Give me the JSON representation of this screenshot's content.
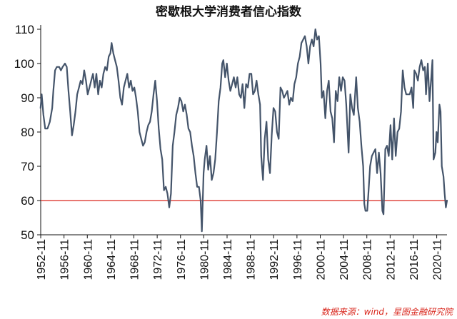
{
  "chart_data": {
    "type": "line",
    "title": "密歇根大学消费者信心指数",
    "xlabel": "",
    "ylabel": "",
    "ylim": [
      50,
      110
    ],
    "yticks": [
      50,
      60,
      70,
      80,
      90,
      100,
      110
    ],
    "xlim": [
      1952.83,
      2022.6
    ],
    "xtick_labels": [
      "1952-11",
      "1956-11",
      "1960-11",
      "1964-11",
      "1968-11",
      "1972-11",
      "1976-11",
      "1980-11",
      "1984-11",
      "1988-11",
      "1992-11",
      "1996-11",
      "2000-11",
      "2004-11",
      "2008-11",
      "2012-11",
      "2016-11",
      "2020-11"
    ],
    "grid": false,
    "legend": "none",
    "reference_line": {
      "y": 60,
      "color": "#d9261c"
    },
    "series": [
      {
        "color": "#44546a",
        "points": [
          [
            1952.8,
            87
          ],
          [
            1953.0,
            91
          ],
          [
            1953.3,
            85
          ],
          [
            1953.6,
            81
          ],
          [
            1954.0,
            81
          ],
          [
            1954.4,
            83
          ],
          [
            1954.8,
            87
          ],
          [
            1955.0,
            92
          ],
          [
            1955.3,
            98
          ],
          [
            1955.6,
            99
          ],
          [
            1956.0,
            99
          ],
          [
            1956.3,
            98
          ],
          [
            1956.6,
            99
          ],
          [
            1957.0,
            100
          ],
          [
            1957.3,
            99
          ],
          [
            1957.6,
            92
          ],
          [
            1957.9,
            86
          ],
          [
            1958.2,
            79
          ],
          [
            1958.5,
            82
          ],
          [
            1958.8,
            86
          ],
          [
            1959.1,
            91
          ],
          [
            1959.4,
            93
          ],
          [
            1959.7,
            95
          ],
          [
            1960.0,
            94
          ],
          [
            1960.3,
            98
          ],
          [
            1960.6,
            95
          ],
          [
            1960.9,
            91
          ],
          [
            1961.2,
            93
          ],
          [
            1961.5,
            95
          ],
          [
            1961.8,
            97
          ],
          [
            1962.1,
            93
          ],
          [
            1962.4,
            97
          ],
          [
            1962.7,
            91
          ],
          [
            1963.0,
            95
          ],
          [
            1963.3,
            93
          ],
          [
            1963.6,
            97
          ],
          [
            1963.9,
            99
          ],
          [
            1964.2,
            98
          ],
          [
            1964.5,
            102
          ],
          [
            1964.8,
            103
          ],
          [
            1965.0,
            106
          ],
          [
            1965.3,
            103
          ],
          [
            1965.6,
            101
          ],
          [
            1965.9,
            99
          ],
          [
            1966.2,
            95
          ],
          [
            1966.5,
            90
          ],
          [
            1966.8,
            88
          ],
          [
            1967.1,
            93
          ],
          [
            1967.4,
            95
          ],
          [
            1967.7,
            97
          ],
          [
            1968.0,
            93
          ],
          [
            1968.3,
            95
          ],
          [
            1968.6,
            92
          ],
          [
            1968.9,
            93
          ],
          [
            1969.2,
            90
          ],
          [
            1969.5,
            86
          ],
          [
            1969.8,
            80
          ],
          [
            1970.1,
            78
          ],
          [
            1970.4,
            76
          ],
          [
            1970.7,
            77
          ],
          [
            1971.0,
            80
          ],
          [
            1971.3,
            82
          ],
          [
            1971.6,
            83
          ],
          [
            1971.9,
            86
          ],
          [
            1972.2,
            91
          ],
          [
            1972.5,
            95
          ],
          [
            1972.8,
            89
          ],
          [
            1973.1,
            81
          ],
          [
            1973.4,
            75
          ],
          [
            1973.7,
            72
          ],
          [
            1974.0,
            63
          ],
          [
            1974.3,
            64
          ],
          [
            1974.6,
            62
          ],
          [
            1974.9,
            58
          ],
          [
            1975.2,
            62
          ],
          [
            1975.5,
            76
          ],
          [
            1975.8,
            80
          ],
          [
            1976.1,
            85
          ],
          [
            1976.4,
            87
          ],
          [
            1976.7,
            90
          ],
          [
            1977.0,
            89
          ],
          [
            1977.3,
            86
          ],
          [
            1977.6,
            88
          ],
          [
            1977.9,
            85
          ],
          [
            1978.2,
            81
          ],
          [
            1978.5,
            80
          ],
          [
            1978.8,
            76
          ],
          [
            1979.1,
            73
          ],
          [
            1979.4,
            68
          ],
          [
            1979.7,
            64
          ],
          [
            1980.0,
            64
          ],
          [
            1980.3,
            60
          ],
          [
            1980.5,
            51
          ],
          [
            1980.8,
            68
          ],
          [
            1981.0,
            72
          ],
          [
            1981.3,
            76
          ],
          [
            1981.6,
            69
          ],
          [
            1981.9,
            73
          ],
          [
            1982.2,
            66
          ],
          [
            1982.5,
            68
          ],
          [
            1982.8,
            72
          ],
          [
            1983.1,
            80
          ],
          [
            1983.4,
            89
          ],
          [
            1983.7,
            93
          ],
          [
            1984.0,
            100
          ],
          [
            1984.2,
            101
          ],
          [
            1984.5,
            96
          ],
          [
            1984.8,
            100
          ],
          [
            1985.1,
            95
          ],
          [
            1985.4,
            92
          ],
          [
            1985.7,
            94
          ],
          [
            1986.0,
            96
          ],
          [
            1986.3,
            93
          ],
          [
            1986.6,
            96
          ],
          [
            1986.9,
            91
          ],
          [
            1987.2,
            90
          ],
          [
            1987.5,
            94
          ],
          [
            1987.8,
            87
          ],
          [
            1988.1,
            94
          ],
          [
            1988.4,
            93
          ],
          [
            1988.7,
            97
          ],
          [
            1989.0,
            97
          ],
          [
            1989.3,
            91
          ],
          [
            1989.6,
            92
          ],
          [
            1989.9,
            95
          ],
          [
            1990.2,
            91
          ],
          [
            1990.5,
            88
          ],
          [
            1990.7,
            73
          ],
          [
            1991.0,
            66
          ],
          [
            1991.3,
            78
          ],
          [
            1991.6,
            83
          ],
          [
            1991.9,
            72
          ],
          [
            1992.2,
            68
          ],
          [
            1992.5,
            79
          ],
          [
            1992.8,
            87
          ],
          [
            1993.1,
            86
          ],
          [
            1993.4,
            80
          ],
          [
            1993.7,
            78
          ],
          [
            1994.0,
            93
          ],
          [
            1994.3,
            92
          ],
          [
            1994.6,
            90
          ],
          [
            1994.9,
            91
          ],
          [
            1995.2,
            92
          ],
          [
            1995.5,
            88
          ],
          [
            1995.8,
            90
          ],
          [
            1996.1,
            89
          ],
          [
            1996.4,
            94
          ],
          [
            1996.7,
            96
          ],
          [
            1997.0,
            100
          ],
          [
            1997.3,
            102
          ],
          [
            1997.6,
            106
          ],
          [
            1997.9,
            107
          ],
          [
            1998.2,
            108
          ],
          [
            1998.5,
            105
          ],
          [
            1998.8,
            100
          ],
          [
            1999.1,
            105
          ],
          [
            1999.4,
            107
          ],
          [
            1999.7,
            105
          ],
          [
            2000.0,
            110
          ],
          [
            2000.3,
            107
          ],
          [
            2000.6,
            108
          ],
          [
            2000.9,
            100
          ],
          [
            2001.1,
            90
          ],
          [
            2001.4,
            92
          ],
          [
            2001.7,
            84
          ],
          [
            2002.0,
            92
          ],
          [
            2002.3,
            95
          ],
          [
            2002.6,
            86
          ],
          [
            2002.9,
            84
          ],
          [
            2003.2,
            77
          ],
          [
            2003.5,
            92
          ],
          [
            2003.8,
            89
          ],
          [
            2004.1,
            96
          ],
          [
            2004.4,
            92
          ],
          [
            2004.7,
            96
          ],
          [
            2005.0,
            95
          ],
          [
            2005.3,
            88
          ],
          [
            2005.7,
            74
          ],
          [
            2006.0,
            91
          ],
          [
            2006.3,
            87
          ],
          [
            2006.6,
            85
          ],
          [
            2007.0,
            96
          ],
          [
            2007.3,
            87
          ],
          [
            2007.6,
            83
          ],
          [
            2007.9,
            76
          ],
          [
            2008.2,
            70
          ],
          [
            2008.4,
            59
          ],
          [
            2008.6,
            57
          ],
          [
            2008.9,
            57
          ],
          [
            2009.1,
            62
          ],
          [
            2009.4,
            70
          ],
          [
            2009.7,
            73
          ],
          [
            2010.0,
            74
          ],
          [
            2010.3,
            75
          ],
          [
            2010.6,
            68
          ],
          [
            2010.9,
            74
          ],
          [
            2011.2,
            68
          ],
          [
            2011.5,
            57
          ],
          [
            2011.7,
            56
          ],
          [
            2012.0,
            75
          ],
          [
            2012.3,
            76
          ],
          [
            2012.6,
            73
          ],
          [
            2012.9,
            82
          ],
          [
            2013.2,
            72
          ],
          [
            2013.5,
            84
          ],
          [
            2013.8,
            73
          ],
          [
            2014.1,
            80
          ],
          [
            2014.4,
            81
          ],
          [
            2014.7,
            86
          ],
          [
            2015.0,
            98
          ],
          [
            2015.3,
            93
          ],
          [
            2015.6,
            91
          ],
          [
            2015.9,
            91
          ],
          [
            2016.2,
            91
          ],
          [
            2016.5,
            93
          ],
          [
            2016.8,
            87
          ],
          [
            2017.0,
            98
          ],
          [
            2017.3,
            97
          ],
          [
            2017.6,
            95
          ],
          [
            2017.9,
            99
          ],
          [
            2018.2,
            101
          ],
          [
            2018.5,
            98
          ],
          [
            2018.8,
            99
          ],
          [
            2019.0,
            91
          ],
          [
            2019.3,
            100
          ],
          [
            2019.6,
            89
          ],
          [
            2019.9,
            96
          ],
          [
            2020.1,
            101
          ],
          [
            2020.3,
            72
          ],
          [
            2020.6,
            74
          ],
          [
            2020.8,
            80
          ],
          [
            2021.0,
            77
          ],
          [
            2021.3,
            88
          ],
          [
            2021.5,
            86
          ],
          [
            2021.7,
            70
          ],
          [
            2022.0,
            67
          ],
          [
            2022.2,
            62
          ],
          [
            2022.4,
            58
          ],
          [
            2022.6,
            60
          ]
        ]
      }
    ],
    "source": "数据来源：wind，星图金融研究院"
  }
}
